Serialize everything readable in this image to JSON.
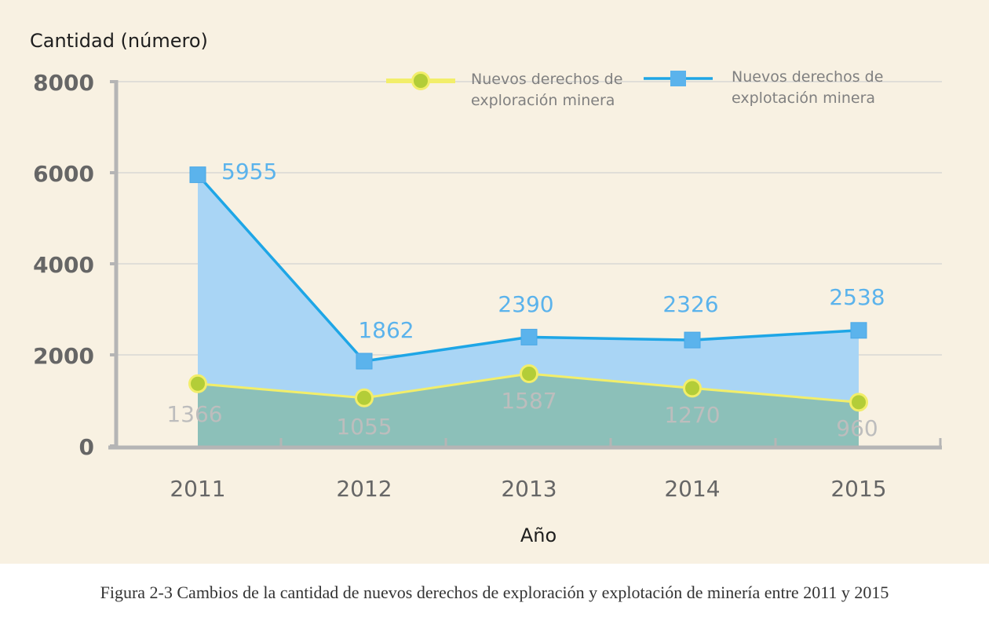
{
  "chart_data": {
    "type": "area",
    "ylabel": "Cantidad (número)",
    "xlabel": "Año",
    "categories": [
      "2011",
      "2012",
      "2013",
      "2014",
      "2015"
    ],
    "ylim": [
      0,
      8000
    ],
    "yticks": [
      "0",
      "2000",
      "4000",
      "6000",
      "8000"
    ],
    "grid": true,
    "legend_position": "top-right",
    "series": [
      {
        "name": "Nuevos derechos de exploración minera",
        "legend_lines": [
          "Nuevos derechos de",
          "exploración minera"
        ],
        "values": [
          1366,
          1055,
          1587,
          1270,
          960
        ],
        "labels": [
          "1366",
          "1055",
          "1587",
          "1270",
          "960"
        ],
        "line_color": "#f2ee6a",
        "marker_color": "#b3cd38",
        "fill_color": "#8cc0b9",
        "marker": "circle"
      },
      {
        "name": "Nuevos derechos de explotación minera",
        "legend_lines": [
          "Nuevos derechos de",
          "explotación minera"
        ],
        "values": [
          5955,
          1862,
          2390,
          2326,
          2538
        ],
        "labels": [
          "5955",
          "1862",
          "2390",
          "2326",
          "2538"
        ],
        "line_color": "#1ea6e6",
        "marker_color": "#5bb3ec",
        "fill_color": "#a9d5f5",
        "marker": "square"
      }
    ]
  },
  "caption": "Figura 2-3 Cambios de la cantidad de nuevos derechos de exploración y explotación de minería entre 2011 y 2015"
}
